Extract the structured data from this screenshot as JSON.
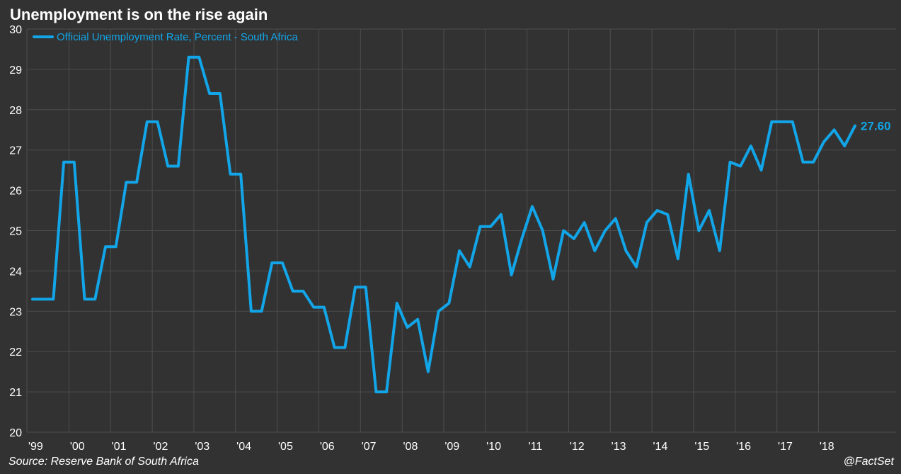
{
  "title": "Unemployment is on the rise again",
  "source": "Source: Reserve Bank of South Africa",
  "credit": "@FactSet",
  "colors": {
    "background": "#323232",
    "grid": "#4d4d4d",
    "series": "#12a5e8",
    "text": "#ffffff"
  },
  "chart_data": {
    "type": "line",
    "title": "Unemployment is on the rise again",
    "xlabel": "",
    "ylabel": "",
    "ylim": [
      20,
      30
    ],
    "yticks": [
      20,
      21,
      22,
      23,
      24,
      25,
      26,
      27,
      28,
      29,
      30
    ],
    "grid": true,
    "legend_position": "top-left",
    "x_tick_labels": [
      "'99",
      "'00",
      "'01",
      "'02",
      "'03",
      "'04",
      "'05",
      "'06",
      "'07",
      "'08",
      "'09",
      "'10",
      "'11",
      "'12",
      "'13",
      "'14",
      "'15",
      "'16",
      "'17",
      "'18"
    ],
    "x_tick_quarter_index": [
      0,
      4,
      8,
      12,
      16,
      20,
      24,
      28,
      32,
      36,
      40,
      44,
      48,
      52,
      56,
      60,
      64,
      68,
      72,
      76
    ],
    "last_value_label": "27.60",
    "series": [
      {
        "name": "Official Unemployment Rate, Percent - South Africa",
        "color": "#12a5e8",
        "values": [
          23.3,
          23.3,
          23.3,
          26.7,
          26.7,
          23.3,
          23.3,
          24.6,
          24.6,
          26.2,
          26.2,
          27.7,
          27.7,
          26.6,
          26.6,
          29.3,
          29.3,
          28.4,
          28.4,
          26.4,
          26.4,
          23.0,
          23.0,
          24.2,
          24.2,
          23.5,
          23.5,
          23.1,
          23.1,
          22.1,
          22.1,
          23.6,
          23.6,
          21.0,
          21.0,
          23.2,
          22.6,
          22.8,
          21.5,
          23.0,
          23.2,
          24.5,
          24.1,
          25.1,
          25.1,
          25.4,
          23.9,
          24.8,
          25.6,
          25.0,
          23.8,
          25.0,
          24.8,
          25.2,
          24.5,
          25.0,
          25.3,
          24.5,
          24.1,
          25.2,
          25.5,
          25.4,
          24.3,
          26.4,
          25.0,
          25.5,
          24.5,
          26.7,
          26.6,
          27.1,
          26.5,
          27.7,
          27.7,
          27.7,
          26.7,
          26.7,
          27.2,
          27.5,
          27.1,
          27.6
        ]
      }
    ]
  }
}
